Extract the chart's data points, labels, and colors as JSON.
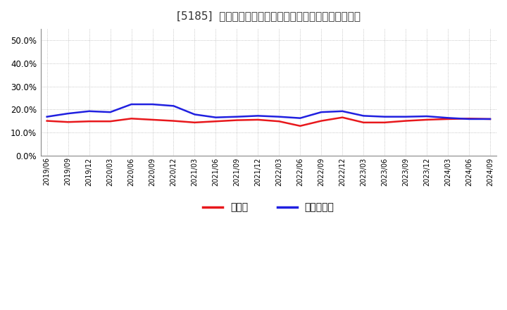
{
  "title": "[5185]  現頲金、有利子負債の総資産に対する比率の推移",
  "x_labels": [
    "2019/06",
    "2019/09",
    "2019/12",
    "2020/03",
    "2020/06",
    "2020/09",
    "2020/12",
    "2021/03",
    "2021/06",
    "2021/09",
    "2021/12",
    "2022/03",
    "2022/06",
    "2022/09",
    "2022/12",
    "2023/03",
    "2023/06",
    "2023/09",
    "2023/12",
    "2024/03",
    "2024/06",
    "2024/09"
  ],
  "cash": [
    0.15,
    0.145,
    0.148,
    0.148,
    0.16,
    0.155,
    0.15,
    0.143,
    0.148,
    0.153,
    0.155,
    0.148,
    0.128,
    0.15,
    0.165,
    0.143,
    0.143,
    0.15,
    0.155,
    0.158,
    0.16,
    0.158
  ],
  "debt": [
    0.168,
    0.182,
    0.192,
    0.188,
    0.222,
    0.222,
    0.215,
    0.178,
    0.165,
    0.168,
    0.172,
    0.168,
    0.162,
    0.188,
    0.192,
    0.172,
    0.168,
    0.168,
    0.17,
    0.163,
    0.158,
    0.158
  ],
  "cash_color": "#e8181c",
  "debt_color": "#2020e0",
  "background_color": "#ffffff",
  "plot_bg_color": "#ffffff",
  "grid_color": "#aaaaaa",
  "ylim": [
    0.0,
    0.55
  ],
  "yticks": [
    0.0,
    0.1,
    0.2,
    0.3,
    0.4,
    0.5
  ],
  "legend_cash": "現頲金",
  "legend_debt": "有利子負債",
  "line_width": 1.8
}
